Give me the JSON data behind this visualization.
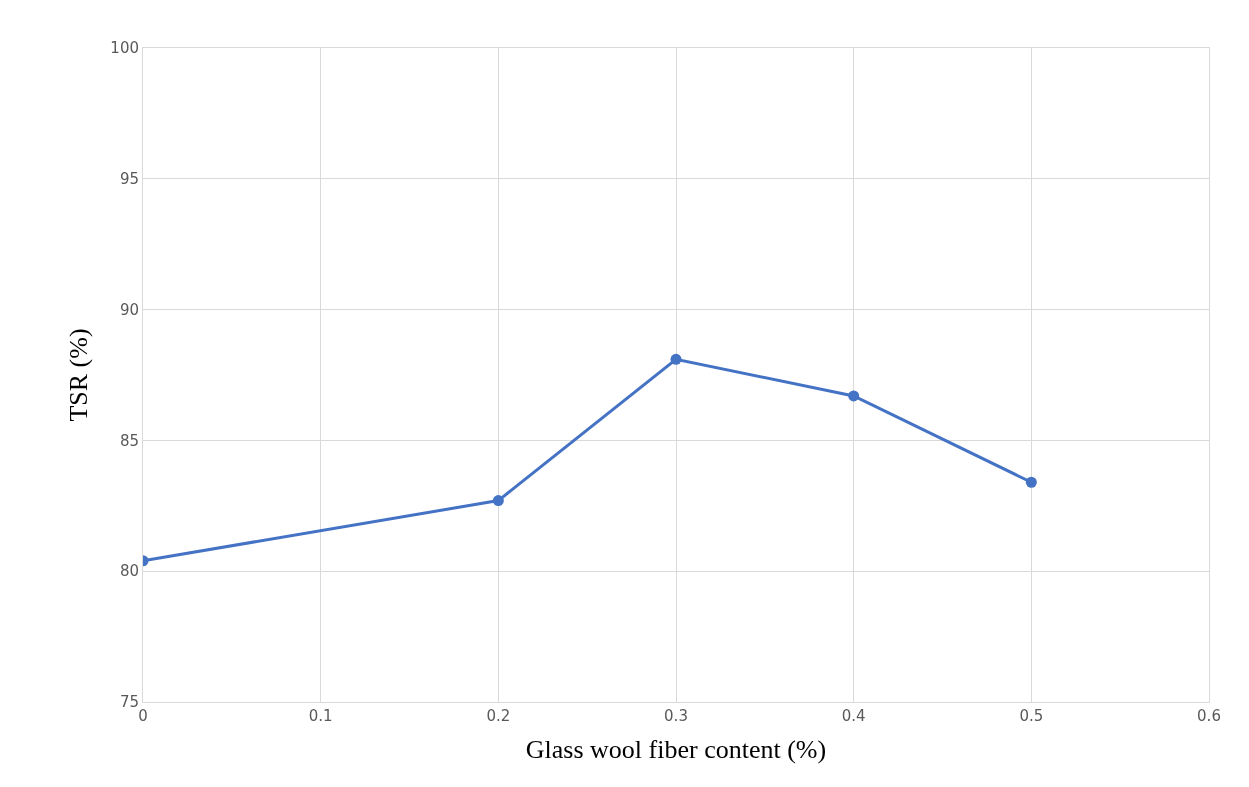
{
  "chart_data": {
    "type": "line",
    "xlabel": "Glass wool fiber content (%)",
    "ylabel": "TSR (%)",
    "x": [
      0,
      0.2,
      0.3,
      0.4,
      0.5
    ],
    "series": [
      {
        "color": "#4472c4",
        "values": [
          80.4,
          82.7,
          88.1,
          86.7,
          83.4
        ]
      }
    ],
    "xlim": [
      0,
      0.6
    ],
    "xticks": [
      0,
      0.1,
      0.2,
      0.3,
      0.4,
      0.5,
      0.6
    ],
    "ylim": [
      75,
      100
    ],
    "yticks": [
      75,
      80,
      85,
      90,
      95,
      100
    ],
    "grid": true,
    "marker": "circle",
    "line_style": "solid"
  }
}
